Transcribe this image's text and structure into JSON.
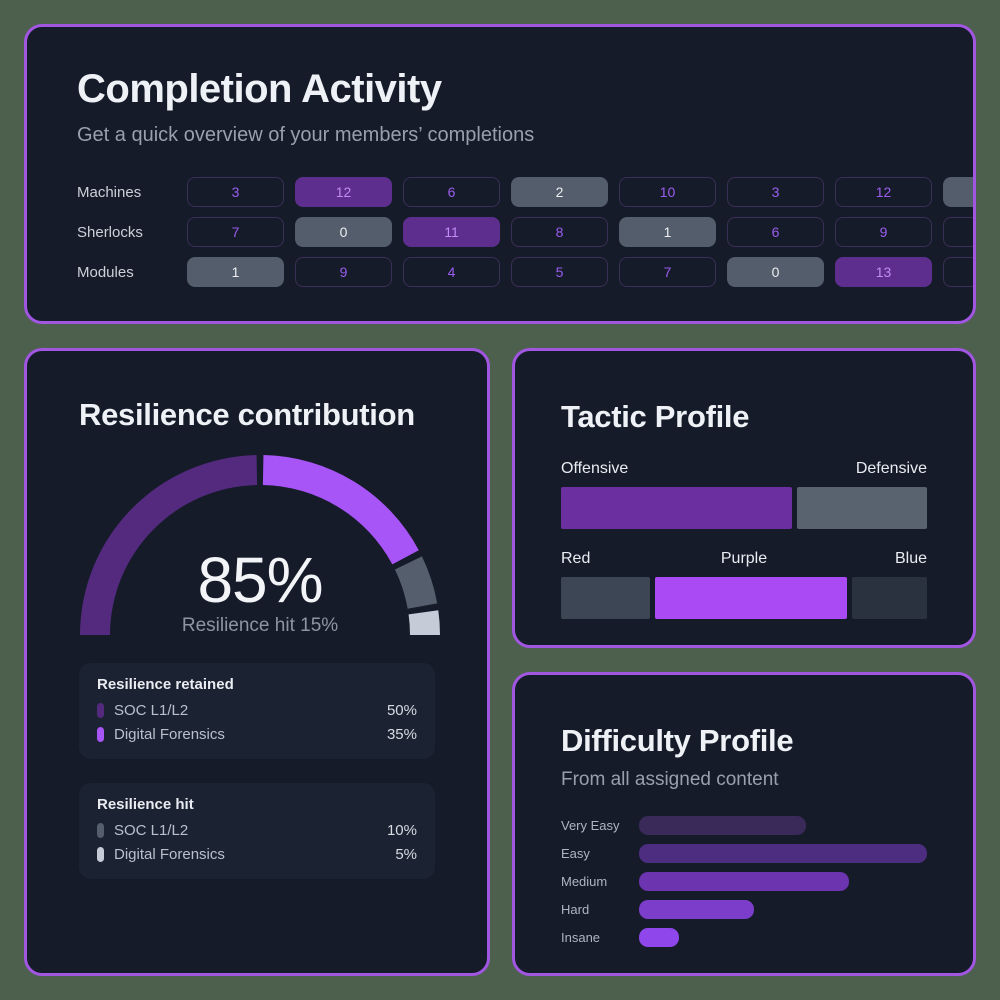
{
  "theme": {
    "page_background": "#4d604d",
    "card_background": "#151b29",
    "card_border": "#a156e2",
    "panel_background": "#1b2232",
    "accent_purple": "#a855f7"
  },
  "chart_data": [
    {
      "id": "completion_activity",
      "type": "table",
      "title": "Completion Activity",
      "subtitle": "Get a quick overview of your members’ completions",
      "row_labels": [
        "Machines",
        "Sherlocks",
        "Modules"
      ],
      "cell_variants": [
        "outline",
        "purple",
        "gray"
      ],
      "rows": [
        {
          "label": "Machines",
          "cells": [
            {
              "value": 3,
              "variant": "outline"
            },
            {
              "value": 12,
              "variant": "purple"
            },
            {
              "value": 6,
              "variant": "outline"
            },
            {
              "value": 2,
              "variant": "gray"
            },
            {
              "value": 10,
              "variant": "outline"
            },
            {
              "value": 3,
              "variant": "outline"
            },
            {
              "value": 12,
              "variant": "outline"
            },
            {
              "value": null,
              "variant": "gray",
              "partial": true
            }
          ]
        },
        {
          "label": "Sherlocks",
          "cells": [
            {
              "value": 7,
              "variant": "outline"
            },
            {
              "value": 0,
              "variant": "gray"
            },
            {
              "value": 11,
              "variant": "purple"
            },
            {
              "value": 8,
              "variant": "outline"
            },
            {
              "value": 1,
              "variant": "gray"
            },
            {
              "value": 6,
              "variant": "outline"
            },
            {
              "value": 9,
              "variant": "outline"
            },
            {
              "value": null,
              "variant": "outline",
              "partial": true
            }
          ]
        },
        {
          "label": "Modules",
          "cells": [
            {
              "value": 1,
              "variant": "gray"
            },
            {
              "value": 9,
              "variant": "outline"
            },
            {
              "value": 4,
              "variant": "outline"
            },
            {
              "value": 5,
              "variant": "outline"
            },
            {
              "value": 7,
              "variant": "outline"
            },
            {
              "value": 0,
              "variant": "gray"
            },
            {
              "value": 13,
              "variant": "purple"
            },
            {
              "value": null,
              "variant": "outline",
              "partial": true
            }
          ]
        }
      ]
    },
    {
      "id": "resilience_gauge",
      "type": "pie",
      "subtype": "half_donut",
      "title": "Resilience contribution",
      "center_value": "85%",
      "center_label": "Resilience hit 15%",
      "angle_total_deg": 180,
      "segments": [
        {
          "group": "Resilience retained",
          "label": "SOC L1/L2",
          "value": 50,
          "unit": "%",
          "color": "#532a7e"
        },
        {
          "group": "Resilience retained",
          "label": "Digital Forensics",
          "value": 35,
          "unit": "%",
          "color": "#a855f7"
        },
        {
          "group": "Resilience hit",
          "label": "SOC L1/L2",
          "value": 10,
          "unit": "%",
          "color": "#555e6c"
        },
        {
          "group": "Resilience hit",
          "label": "Digital Forensics",
          "value": 5,
          "unit": "%",
          "color": "#c5ccd7"
        }
      ]
    },
    {
      "id": "tactic_profile",
      "type": "bar",
      "subtype": "segmented_horizontal",
      "title": "Tactic Profile",
      "value_unit": "percent of row width, visually estimated",
      "rows": [
        {
          "segments": [
            {
              "label": "Offensive",
              "align": "left",
              "value": 64,
              "color": "#6b2f9f"
            },
            {
              "label": "Defensive",
              "align": "right",
              "value": 36,
              "color": "#59626f"
            }
          ]
        },
        {
          "segments": [
            {
              "label": "Red",
              "align": "left",
              "value": 25,
              "color": "#3d4654"
            },
            {
              "label": "Purple",
              "align": "center",
              "value": 54,
              "color": "#a94af5"
            },
            {
              "label": "Blue",
              "align": "right",
              "value": 21,
              "color": "#2a3240"
            }
          ]
        }
      ]
    },
    {
      "id": "difficulty_profile",
      "type": "bar",
      "orientation": "horizontal",
      "title": "Difficulty Profile",
      "subtitle": "From all assigned content",
      "categories": [
        "Very Easy",
        "Easy",
        "Medium",
        "Hard",
        "Insane"
      ],
      "values": [
        58,
        100,
        73,
        40,
        14
      ],
      "value_unit": "percent of longest bar, visually estimated",
      "colors": [
        "#392a59",
        "#4c2d80",
        "#6c34ae",
        "#7d3dcb",
        "#8f46ea"
      ],
      "grid": false,
      "legend": false
    }
  ]
}
